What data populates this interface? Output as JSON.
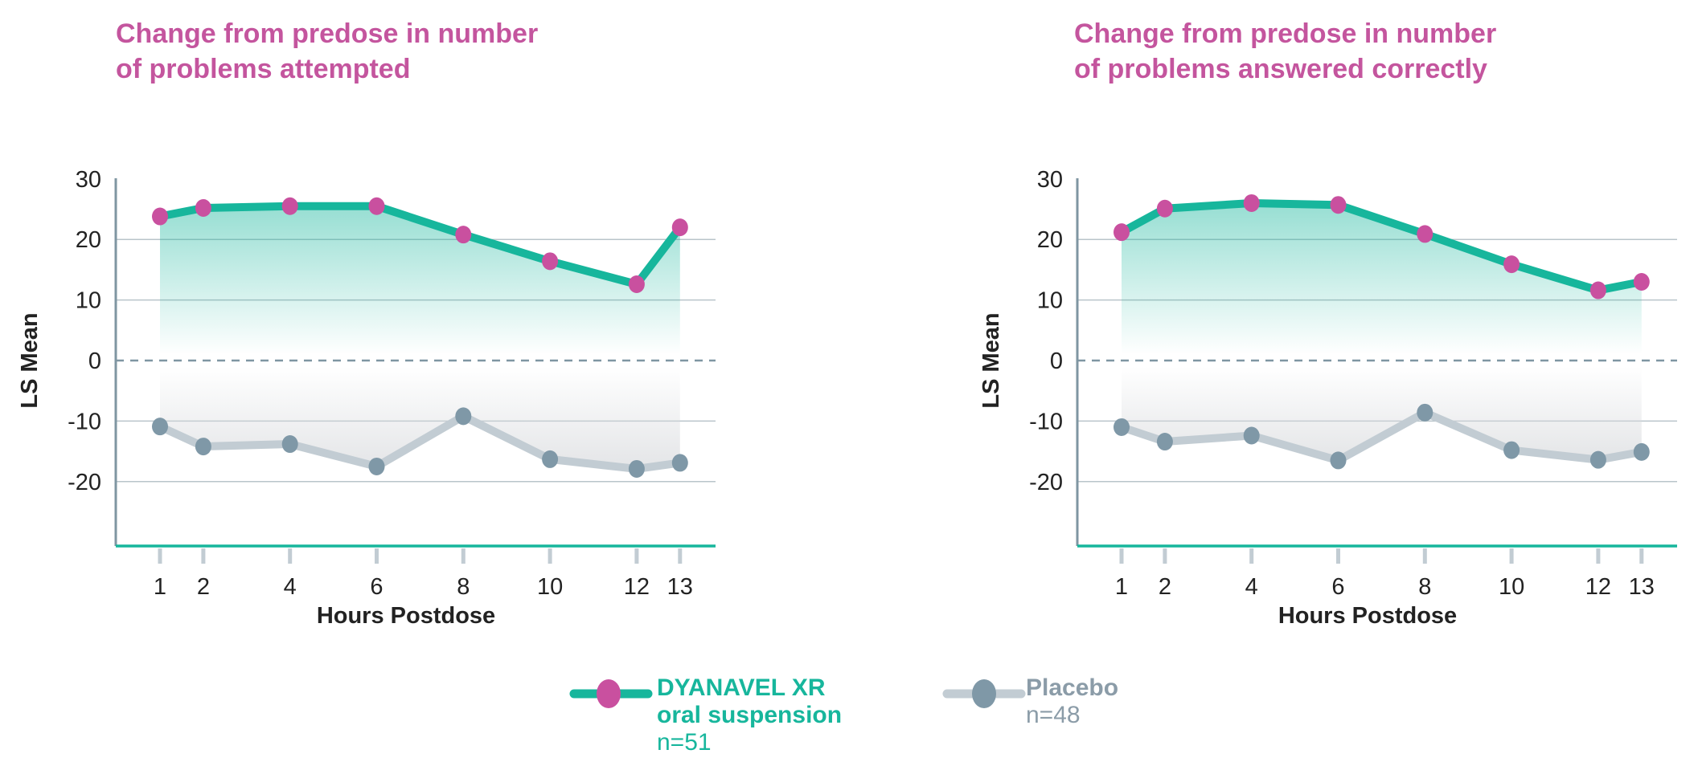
{
  "colors": {
    "drug_line": "#17b69c",
    "drug_marker": "#c9509f",
    "placebo_line": "#c2ccd3",
    "placebo_marker": "#7f98a7",
    "axis": "#7f96a2",
    "title": "#c4559e"
  },
  "legend": {
    "drug": {
      "name_line1": "DYANAVEL XR",
      "name_line2": "oral suspension",
      "n": "n=51"
    },
    "placebo": {
      "name": "Placebo",
      "n": "n=48"
    }
  },
  "chart_data": [
    {
      "type": "line",
      "title_line1": "Change from predose in number",
      "title_line2": "of problems attempted",
      "xlabel": "Hours Postdose",
      "ylabel": "LS Mean",
      "x": [
        1,
        2,
        4,
        6,
        8,
        10,
        12,
        13
      ],
      "yticks": [
        30,
        20,
        10,
        0,
        -10,
        -20
      ],
      "ylim": [
        -31,
        30
      ],
      "grid": true,
      "series": [
        {
          "name": "DYANAVEL XR oral suspension",
          "values": [
            23.8,
            25.2,
            25.5,
            25.5,
            20.8,
            16.4,
            12.6,
            22.0
          ]
        },
        {
          "name": "Placebo",
          "values": [
            -10.9,
            -14.2,
            -13.8,
            -17.5,
            -9.2,
            -16.3,
            -17.9,
            -16.9
          ]
        }
      ]
    },
    {
      "type": "line",
      "title_line1": "Change from predose in number",
      "title_line2": "of problems answered correctly",
      "xlabel": "Hours Postdose",
      "ylabel": "LS Mean",
      "x": [
        1,
        2,
        4,
        6,
        8,
        10,
        12,
        13
      ],
      "yticks": [
        30,
        20,
        10,
        0,
        -10,
        -20
      ],
      "ylim": [
        -31,
        30
      ],
      "grid": true,
      "series": [
        {
          "name": "DYANAVEL XR oral suspension",
          "values": [
            21.2,
            25.1,
            26.0,
            25.7,
            20.9,
            15.9,
            11.6,
            13.0
          ]
        },
        {
          "name": "Placebo",
          "values": [
            -11.0,
            -13.4,
            -12.4,
            -16.5,
            -8.6,
            -14.8,
            -16.4,
            -15.1
          ]
        }
      ]
    }
  ]
}
